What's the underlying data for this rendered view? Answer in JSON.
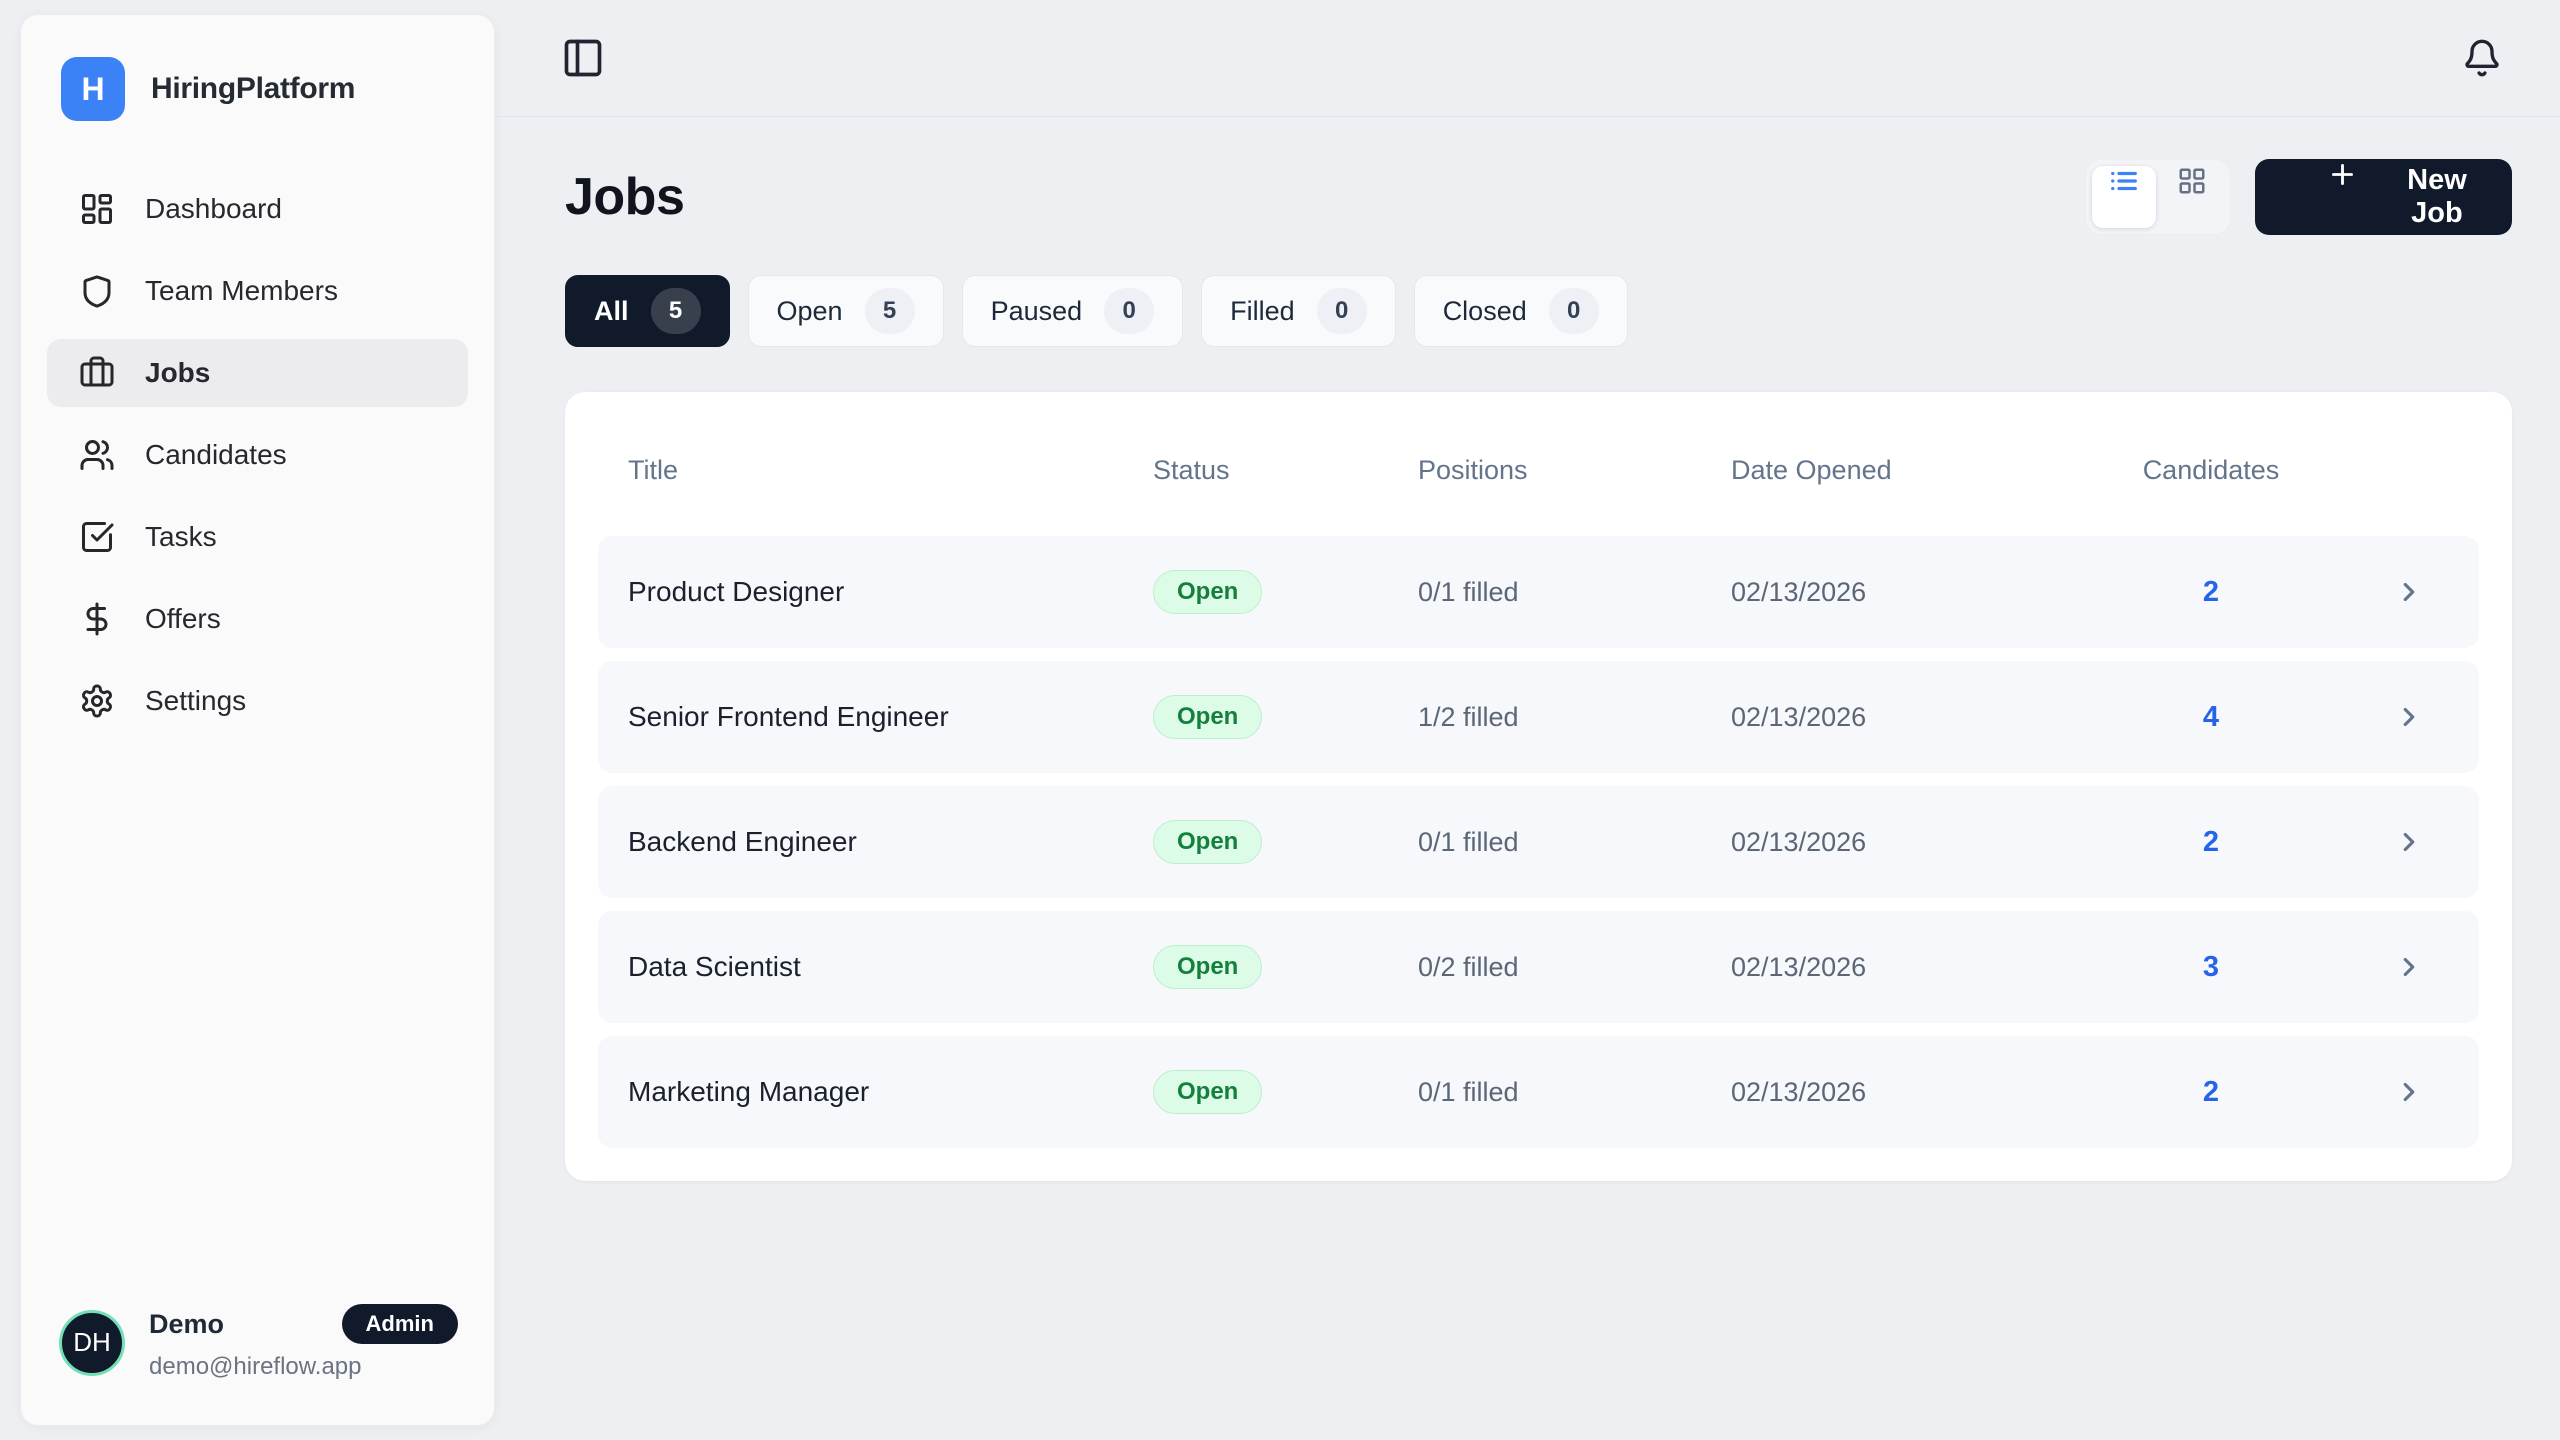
{
  "colors": {
    "accent": "#3b82f6",
    "navy": "#101a2b",
    "candidate_count_blue": "#2563eb",
    "badge_green_bg": "#dcfce7",
    "badge_green_text": "#15803d",
    "page_bg": "#edeff3"
  },
  "brand": {
    "name": "HiringPlatform",
    "logo_letter": "H"
  },
  "sidebar": {
    "items": [
      {
        "label": "Dashboard",
        "icon": "layout-dashboard",
        "active": false
      },
      {
        "label": "Team Members",
        "icon": "shield",
        "active": false
      },
      {
        "label": "Jobs",
        "icon": "briefcase",
        "active": true
      },
      {
        "label": "Candidates",
        "icon": "users",
        "active": false
      },
      {
        "label": "Tasks",
        "icon": "square-check",
        "active": false
      },
      {
        "label": "Offers",
        "icon": "dollar-sign",
        "active": false
      },
      {
        "label": "Settings",
        "icon": "gear",
        "active": false
      }
    ],
    "user": {
      "initials": "DH",
      "name": "Demo",
      "role_badge": "Admin",
      "email": "demo@hireflow.app"
    }
  },
  "topbar": {
    "left_icon": "panel-left",
    "right_icon": "bell"
  },
  "page": {
    "title": "Jobs",
    "new_job_label": "New Job",
    "view_toggle": {
      "options": [
        "list",
        "grid"
      ],
      "active": "list"
    },
    "filters": [
      {
        "label": "All",
        "count": 5,
        "active": true
      },
      {
        "label": "Open",
        "count": 5,
        "active": false
      },
      {
        "label": "Paused",
        "count": 0,
        "active": false
      },
      {
        "label": "Filled",
        "count": 0,
        "active": false
      },
      {
        "label": "Closed",
        "count": 0,
        "active": false
      }
    ],
    "table": {
      "columns": [
        "Title",
        "Status",
        "Positions",
        "Date Opened",
        "Candidates"
      ],
      "rows": [
        {
          "title": "Product Designer",
          "status": "Open",
          "positions": "0/1 filled",
          "date_opened": "02/13/2026",
          "candidates": "2"
        },
        {
          "title": "Senior Frontend Engineer",
          "status": "Open",
          "positions": "1/2 filled",
          "date_opened": "02/13/2026",
          "candidates": "4"
        },
        {
          "title": "Backend Engineer",
          "status": "Open",
          "positions": "0/1 filled",
          "date_opened": "02/13/2026",
          "candidates": "2"
        },
        {
          "title": "Data Scientist",
          "status": "Open",
          "positions": "0/2 filled",
          "date_opened": "02/13/2026",
          "candidates": "3"
        },
        {
          "title": "Marketing Manager",
          "status": "Open",
          "positions": "0/1 filled",
          "date_opened": "02/13/2026",
          "candidates": "2"
        }
      ]
    }
  }
}
